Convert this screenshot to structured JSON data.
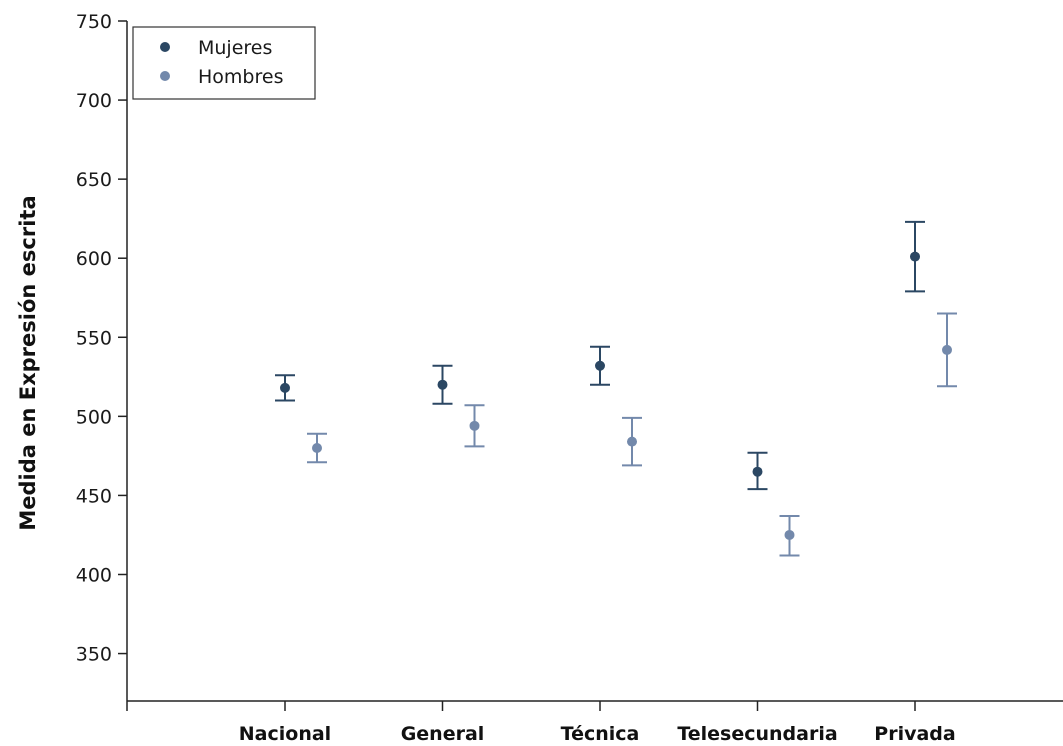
{
  "chart_data": {
    "type": "scatter",
    "title": "",
    "xlabel": "",
    "ylabel": "Medida en Expresión escrita",
    "ylim": [
      320,
      750
    ],
    "yticks": [
      350,
      400,
      450,
      500,
      550,
      600,
      650,
      700,
      750
    ],
    "grid": false,
    "legend_position": "top-left",
    "categories": [
      "Nacional",
      "General",
      "Técnica",
      "Telesecundaria",
      "Privada"
    ],
    "series": [
      {
        "name": "Mujeres",
        "color": "#2b4763",
        "values": [
          518,
          520,
          532,
          465,
          601
        ],
        "lower": [
          510,
          508,
          520,
          454,
          579
        ],
        "upper": [
          526,
          532,
          544,
          477,
          623
        ]
      },
      {
        "name": "Hombres",
        "color": "#7389ab",
        "values": [
          480,
          494,
          484,
          425,
          542
        ],
        "lower": [
          471,
          481,
          469,
          412,
          519
        ],
        "upper": [
          489,
          507,
          499,
          437,
          565
        ]
      }
    ]
  }
}
